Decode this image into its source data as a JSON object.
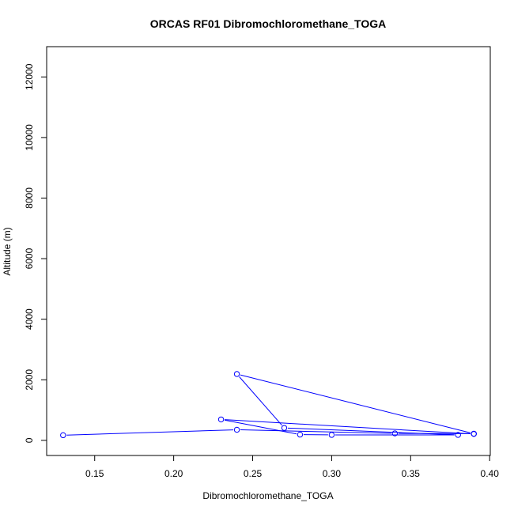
{
  "chart_data": {
    "type": "line",
    "title": "ORCAS RF01 Dibromochloromethane_TOGA",
    "xlabel": "Dibromochloromethane_TOGA",
    "ylabel": "Altitude (m)",
    "xlim": [
      0.13,
      0.39
    ],
    "ylim": [
      0,
      12500
    ],
    "xticks": [
      "0.15",
      "0.20",
      "0.25",
      "0.30",
      "0.35",
      "0.40"
    ],
    "yticks": [
      "0",
      "2000",
      "4000",
      "6000",
      "8000",
      "10000",
      "12000"
    ],
    "grid": false,
    "series": [
      {
        "marker": "open-circle",
        "color": "#0000ff",
        "x": [
          0.13,
          0.24,
          0.34,
          0.39,
          0.24,
          0.27,
          0.38,
          0.3,
          0.28,
          0.23,
          0.39
        ],
        "y": [
          170,
          350,
          230,
          220,
          2190,
          410,
          180,
          180,
          190,
          690,
          210
        ]
      }
    ]
  }
}
